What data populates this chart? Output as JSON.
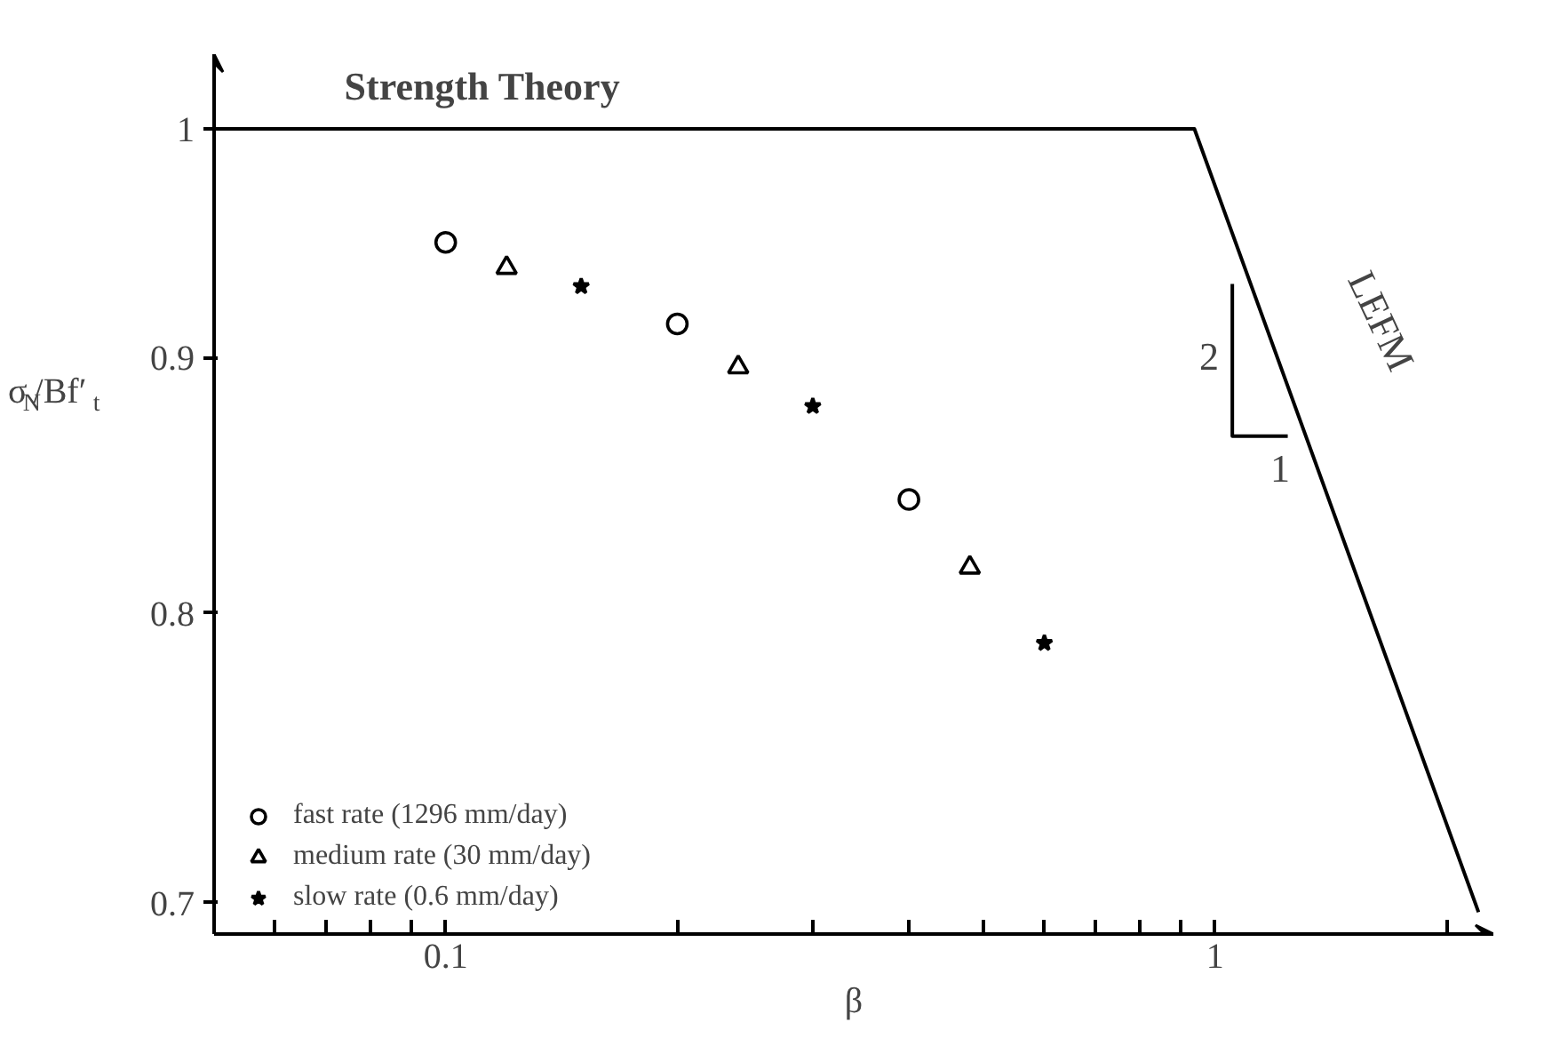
{
  "chart_data": {
    "type": "scatter",
    "xlabel": "β",
    "ylabel": "σ$_{N}$/Bf′$_{t}$",
    "log": "xy",
    "grid": false,
    "legend": "bottom left",
    "xlim": [
      0.05,
      2.3
    ],
    "ylim": [
      0.69,
      1.035
    ],
    "xticks": [
      {
        "value": 0.05,
        "label": null
      },
      {
        "value": 0.06,
        "label": null
      },
      {
        "value": 0.07,
        "label": null
      },
      {
        "value": 0.08,
        "label": null
      },
      {
        "value": 0.09,
        "label": null
      },
      0.1,
      {
        "value": 0.2,
        "label": null
      },
      {
        "value": 0.3,
        "label": null
      },
      {
        "value": 0.4,
        "label": null
      },
      {
        "value": 0.5,
        "label": null
      },
      {
        "value": 0.6,
        "label": null
      },
      {
        "value": 0.7,
        "label": null
      },
      {
        "value": 0.8,
        "label": null
      },
      {
        "value": 0.9,
        "label": null
      },
      1,
      {
        "value": 2,
        "label": null
      }
    ],
    "yticks": [
      0.7,
      0.8,
      0.9,
      1
    ],
    "series": [
      {
        "name": "fast rate (1296 mm/day)",
        "color": "#000000",
        "marker": "circle",
        "x": [
          0.1,
          0.2,
          0.4
        ],
        "values": [
          0.949,
          0.914,
          0.843
        ]
      },
      {
        "name": "medium rate (30 mm/day)",
        "color": "#000000",
        "marker": "triangle",
        "x": [
          0.12,
          0.24,
          0.48
        ],
        "values": [
          0.938,
          0.896,
          0.817
        ]
      },
      {
        "name": "slow rate (0.6 mm/day)",
        "color": "#000000",
        "marker": "star",
        "x": [
          0.15,
          0.3,
          0.6
        ],
        "values": [
          0.93,
          0.88,
          0.789
        ]
      },
      {
        "type": "line",
        "color": "#000000",
        "x": [
          0.05,
          0.94,
          2.2
        ],
        "values": [
          1,
          1,
          0.697
        ]
      },
      {
        "type": "line",
        "color": "#000000",
        "x": [
          1.053,
          1.053,
          1.243
        ],
        "values": [
          0.931,
          0.868,
          0.868
        ]
      }
    ],
    "annotations": [
      "Strength Theory",
      "LEFM",
      "2",
      "1"
    ]
  }
}
